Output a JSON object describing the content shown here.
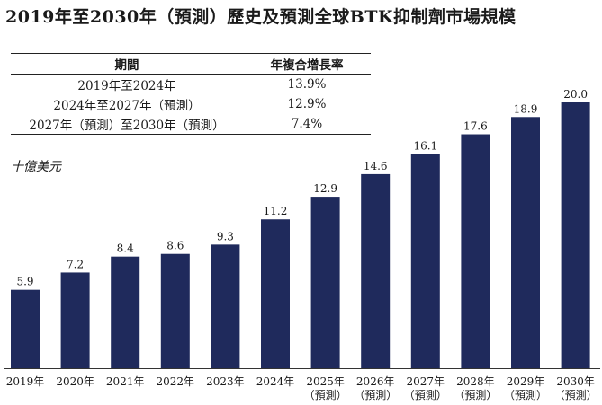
{
  "title": "2019年至2030年（預測）歷史及預測全球BTK抑制劑市場規模",
  "cagr_table": {
    "headers": [
      "期間",
      "年複合增長率"
    ],
    "rows": [
      {
        "period": "2019年至2024年",
        "rate": "13.9%"
      },
      {
        "period": "2024年至2027年（預測）",
        "rate": "12.9%"
      },
      {
        "period": "2027年（預測）至2030年（預測）",
        "rate": "7.4%"
      }
    ]
  },
  "unit_label": "十億美元",
  "colors": {
    "bar": "#1f2a5c",
    "axis": "#333333"
  },
  "chart_data": {
    "type": "bar",
    "title": "2019年至2030年（預測）歷史及預測全球BTK抑制劑市場規模",
    "ylabel": "十億美元",
    "categories": [
      [
        "2019年"
      ],
      [
        "2020年"
      ],
      [
        "2021年"
      ],
      [
        "2022年"
      ],
      [
        "2023年"
      ],
      [
        "2024年"
      ],
      [
        "2025年",
        "（預測）"
      ],
      [
        "2026年",
        "（預測）"
      ],
      [
        "2027年",
        "（預測）"
      ],
      [
        "2028年",
        "（預測）"
      ],
      [
        "2029年",
        "（預測）"
      ],
      [
        "2030年",
        "（預測）"
      ]
    ],
    "values": [
      5.9,
      7.2,
      8.4,
      8.6,
      9.3,
      11.2,
      12.9,
      14.6,
      16.1,
      17.6,
      18.9,
      20.0
    ],
    "value_labels": [
      "5.9",
      "7.2",
      "8.4",
      "8.6",
      "9.3",
      "11.2",
      "12.9",
      "14.6",
      "16.1",
      "17.6",
      "18.9",
      "20.0"
    ],
    "ylim": [
      0,
      20
    ],
    "grid": false,
    "legend": "none"
  }
}
